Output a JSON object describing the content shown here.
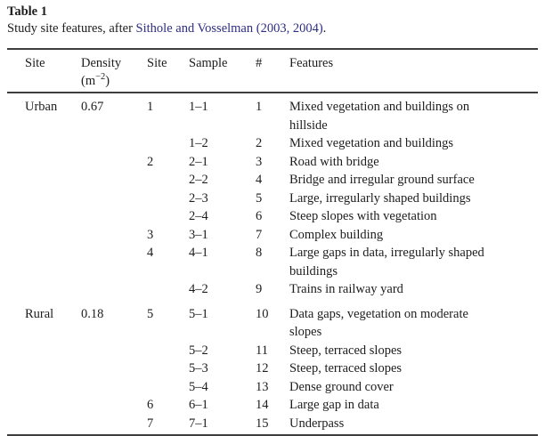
{
  "caption": {
    "label": "Table 1",
    "text_before": "Study site features, after ",
    "citation": "Sithole and Vosselman (2003, 2004)",
    "text_after": "."
  },
  "table": {
    "columns": [
      {
        "label": "Site"
      },
      {
        "label": "Density",
        "unit_pre": "(m",
        "unit_sup": "−2",
        "unit_post": ")"
      },
      {
        "label": "Site"
      },
      {
        "label": "Sample"
      },
      {
        "label": "#"
      },
      {
        "label": "Features"
      }
    ],
    "rows": [
      {
        "site": "Urban",
        "density": "0.67",
        "site2": "1",
        "sample": "1–1",
        "num": "1",
        "features": "Mixed vegetation and buildings on hillside"
      },
      {
        "site": "",
        "density": "",
        "site2": "",
        "sample": "1–2",
        "num": "2",
        "features": "Mixed vegetation and buildings"
      },
      {
        "site": "",
        "density": "",
        "site2": "2",
        "sample": "2–1",
        "num": "3",
        "features": "Road with bridge"
      },
      {
        "site": "",
        "density": "",
        "site2": "",
        "sample": "2–2",
        "num": "4",
        "features": "Bridge and irregular ground surface"
      },
      {
        "site": "",
        "density": "",
        "site2": "",
        "sample": "2–3",
        "num": "5",
        "features": "Large, irregularly shaped buildings"
      },
      {
        "site": "",
        "density": "",
        "site2": "",
        "sample": "2–4",
        "num": "6",
        "features": "Steep slopes with vegetation"
      },
      {
        "site": "",
        "density": "",
        "site2": "3",
        "sample": "3–1",
        "num": "7",
        "features": "Complex building"
      },
      {
        "site": "",
        "density": "",
        "site2": "4",
        "sample": "4–1",
        "num": "8",
        "features": "Large gaps in data, irregularly shaped buildings"
      },
      {
        "site": "",
        "density": "",
        "site2": "",
        "sample": "4–2",
        "num": "9",
        "features": "Trains in railway yard"
      },
      {
        "site": "Rural",
        "density": "0.18",
        "site2": "5",
        "sample": "5–1",
        "num": "10",
        "features": "Data gaps, vegetation on moderate slopes",
        "group_start": true
      },
      {
        "site": "",
        "density": "",
        "site2": "",
        "sample": "5–2",
        "num": "11",
        "features": "Steep, terraced slopes"
      },
      {
        "site": "",
        "density": "",
        "site2": "",
        "sample": "5–3",
        "num": "12",
        "features": "Steep, terraced slopes"
      },
      {
        "site": "",
        "density": "",
        "site2": "",
        "sample": "5–4",
        "num": "13",
        "features": "Dense ground cover"
      },
      {
        "site": "",
        "density": "",
        "site2": "6",
        "sample": "6–1",
        "num": "14",
        "features": "Large gap in data"
      },
      {
        "site": "",
        "density": "",
        "site2": "7",
        "sample": "7–1",
        "num": "15",
        "features": "Underpass"
      }
    ]
  },
  "colors": {
    "text": "#1d1d1d",
    "link": "#2e2e83",
    "rule": "#3d3d3d",
    "background": "#ffffff"
  }
}
